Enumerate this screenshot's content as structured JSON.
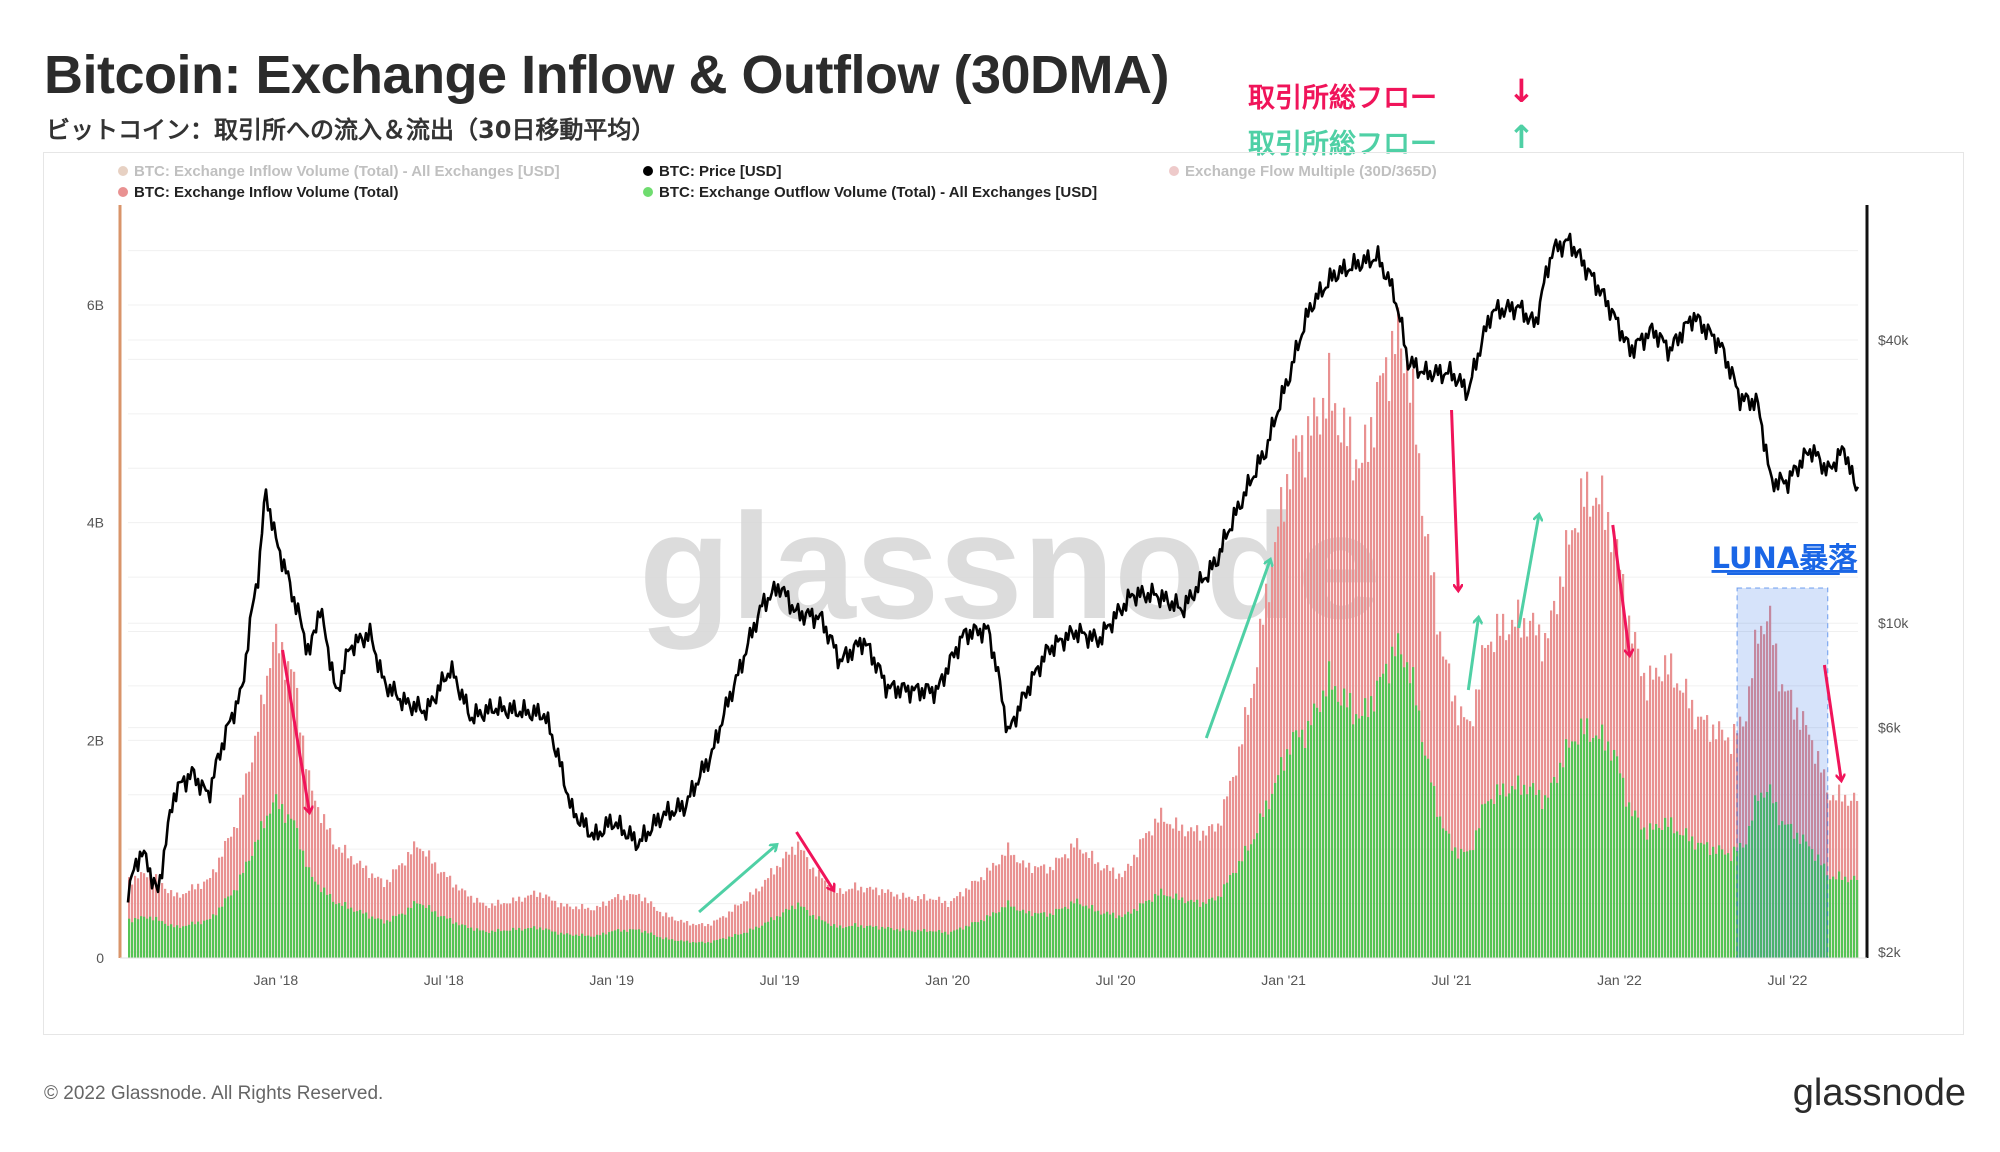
{
  "header": {
    "title": "Bitcoin: Exchange Inflow & Outflow (30DMA)",
    "subtitle": "ビットコイン：取引所への流入＆流出（30日移動平均）",
    "flow_down_label": "取引所総フロー",
    "flow_down_arrow": "↓",
    "flow_up_label": "取引所総フロー",
    "flow_up_arrow": "↑"
  },
  "footer": {
    "copyright": "© 2022 Glassnode. All Rights Reserved.",
    "brand": "glassnode"
  },
  "colors": {
    "inflow": "#e99191",
    "outflow": "#55c455",
    "price": "#000000",
    "down_arrow": "#f0145a",
    "up_arrow": "#4fd0a5",
    "highlight": "#1a66e6",
    "left_axis": "#d9946a"
  },
  "chart_data": {
    "type": "area",
    "title": "Bitcoin: Exchange Inflow & Outflow (30DMA)",
    "watermark": "glassnode",
    "legend": {
      "placement": "top-left",
      "items": [
        {
          "label": "BTC: Exchange Inflow Volume (Total) - All Exchanges [USD]",
          "color": "#c99a7a",
          "faded": true
        },
        {
          "label": "BTC: Price [USD]",
          "color": "#000000",
          "faded": false
        },
        {
          "label": "Exchange Flow Multiple (30D/365D)",
          "color": "#d98a8a",
          "faded": true
        },
        {
          "label": "BTC: Exchange Inflow Volume (Total)",
          "color": "#e99191",
          "faded": false
        },
        {
          "label": "BTC: Exchange Outflow Volume (Total) - All Exchanges [USD]",
          "color": "#6fdc6f",
          "faded": false
        }
      ]
    },
    "x_ticks": [
      "Jan '18",
      "Jul '18",
      "Jan '19",
      "Jul '19",
      "Jan '20",
      "Jul '20",
      "Jan '21",
      "Jul '21",
      "Jan '22",
      "Jul '22"
    ],
    "x_range_years": [
      2017.56,
      2022.71
    ],
    "x_tick_years": [
      2018.0,
      2018.5,
      2019.0,
      2019.5,
      2020.0,
      2020.5,
      2021.0,
      2021.5,
      2022.0,
      2022.5
    ],
    "left_axis": {
      "ticks": [
        "0",
        "2B",
        "4B",
        "6B"
      ],
      "tick_values": [
        0,
        2,
        4,
        6
      ],
      "unit": "B USD",
      "range": [
        0,
        7
      ]
    },
    "right_axis": {
      "scale": "log",
      "ticks": [
        "$2k",
        "$6k",
        "$10k",
        "$40k"
      ],
      "tick_values": [
        2000,
        6000,
        10000,
        40000
      ],
      "range": [
        2000,
        80000
      ]
    },
    "series": [
      {
        "name": "BTC: Exchange Inflow Volume (Total)",
        "unit": "B USD",
        "points": [
          [
            2017.56,
            0.72
          ],
          [
            2017.62,
            0.78
          ],
          [
            2017.7,
            0.56
          ],
          [
            2017.8,
            0.72
          ],
          [
            2017.88,
            1.25
          ],
          [
            2017.95,
            2.2
          ],
          [
            2017.99,
            2.95
          ],
          [
            2018.05,
            2.6
          ],
          [
            2018.1,
            1.55
          ],
          [
            2018.17,
            1.05
          ],
          [
            2018.25,
            0.85
          ],
          [
            2018.32,
            0.68
          ],
          [
            2018.38,
            0.9
          ],
          [
            2018.42,
            1.05
          ],
          [
            2018.48,
            0.82
          ],
          [
            2018.55,
            0.62
          ],
          [
            2018.62,
            0.48
          ],
          [
            2018.7,
            0.52
          ],
          [
            2018.78,
            0.6
          ],
          [
            2018.85,
            0.48
          ],
          [
            2018.95,
            0.45
          ],
          [
            2019.0,
            0.55
          ],
          [
            2019.08,
            0.58
          ],
          [
            2019.15,
            0.4
          ],
          [
            2019.22,
            0.32
          ],
          [
            2019.28,
            0.3
          ],
          [
            2019.33,
            0.38
          ],
          [
            2019.38,
            0.5
          ],
          [
            2019.43,
            0.62
          ],
          [
            2019.5,
            0.88
          ],
          [
            2019.55,
            1.05
          ],
          [
            2019.6,
            0.8
          ],
          [
            2019.67,
            0.6
          ],
          [
            2019.72,
            0.65
          ],
          [
            2019.8,
            0.62
          ],
          [
            2019.88,
            0.55
          ],
          [
            2019.95,
            0.55
          ],
          [
            2020.0,
            0.5
          ],
          [
            2020.06,
            0.65
          ],
          [
            2020.12,
            0.8
          ],
          [
            2020.18,
            1.0
          ],
          [
            2020.22,
            0.85
          ],
          [
            2020.3,
            0.82
          ],
          [
            2020.38,
            1.05
          ],
          [
            2020.45,
            0.85
          ],
          [
            2020.52,
            0.75
          ],
          [
            2020.58,
            1.1
          ],
          [
            2020.63,
            1.3
          ],
          [
            2020.68,
            1.2
          ],
          [
            2020.75,
            1.15
          ],
          [
            2020.8,
            1.2
          ],
          [
            2020.85,
            1.7
          ],
          [
            2020.9,
            2.4
          ],
          [
            2020.96,
            3.6
          ],
          [
            2021.02,
            4.6
          ],
          [
            2021.07,
            4.8
          ],
          [
            2021.13,
            5.2
          ],
          [
            2021.18,
            4.8
          ],
          [
            2021.23,
            4.5
          ],
          [
            2021.28,
            5.2
          ],
          [
            2021.33,
            5.7
          ],
          [
            2021.37,
            5.45
          ],
          [
            2021.41,
            4.2
          ],
          [
            2021.45,
            3.2
          ],
          [
            2021.5,
            2.4
          ],
          [
            2021.55,
            2.1
          ],
          [
            2021.6,
            2.9
          ],
          [
            2021.66,
            3.05
          ],
          [
            2021.72,
            3.1
          ],
          [
            2021.78,
            2.9
          ],
          [
            2021.83,
            3.6
          ],
          [
            2021.88,
            4.2
          ],
          [
            2021.93,
            4.25
          ],
          [
            2021.98,
            3.9
          ],
          [
            2022.03,
            3.0
          ],
          [
            2022.08,
            2.5
          ],
          [
            2022.13,
            2.7
          ],
          [
            2022.18,
            2.5
          ],
          [
            2022.23,
            2.2
          ],
          [
            2022.28,
            2.1
          ],
          [
            2022.33,
            2.0
          ],
          [
            2022.37,
            2.2
          ],
          [
            2022.41,
            3.0
          ],
          [
            2022.44,
            3.15
          ],
          [
            2022.48,
            2.5
          ],
          [
            2022.52,
            2.3
          ],
          [
            2022.57,
            2.0
          ],
          [
            2022.62,
            1.5
          ],
          [
            2022.71,
            1.45
          ]
        ]
      },
      {
        "name": "BTC: Exchange Outflow Volume (Total) - All Exchanges [USD]",
        "unit": "B USD",
        "points": [
          [
            2017.56,
            0.35
          ],
          [
            2017.62,
            0.38
          ],
          [
            2017.7,
            0.28
          ],
          [
            2017.8,
            0.35
          ],
          [
            2017.88,
            0.65
          ],
          [
            2017.95,
            1.15
          ],
          [
            2017.99,
            1.45
          ],
          [
            2018.05,
            1.25
          ],
          [
            2018.1,
            0.75
          ],
          [
            2018.17,
            0.52
          ],
          [
            2018.25,
            0.42
          ],
          [
            2018.32,
            0.33
          ],
          [
            2018.38,
            0.42
          ],
          [
            2018.42,
            0.52
          ],
          [
            2018.48,
            0.4
          ],
          [
            2018.55,
            0.3
          ],
          [
            2018.62,
            0.24
          ],
          [
            2018.7,
            0.26
          ],
          [
            2018.78,
            0.28
          ],
          [
            2018.85,
            0.22
          ],
          [
            2018.95,
            0.2
          ],
          [
            2019.0,
            0.25
          ],
          [
            2019.08,
            0.26
          ],
          [
            2019.15,
            0.18
          ],
          [
            2019.22,
            0.15
          ],
          [
            2019.28,
            0.14
          ],
          [
            2019.33,
            0.18
          ],
          [
            2019.38,
            0.22
          ],
          [
            2019.43,
            0.28
          ],
          [
            2019.5,
            0.4
          ],
          [
            2019.55,
            0.5
          ],
          [
            2019.6,
            0.38
          ],
          [
            2019.67,
            0.28
          ],
          [
            2019.72,
            0.3
          ],
          [
            2019.8,
            0.28
          ],
          [
            2019.88,
            0.25
          ],
          [
            2019.95,
            0.25
          ],
          [
            2020.0,
            0.23
          ],
          [
            2020.06,
            0.3
          ],
          [
            2020.12,
            0.38
          ],
          [
            2020.18,
            0.5
          ],
          [
            2020.22,
            0.42
          ],
          [
            2020.3,
            0.4
          ],
          [
            2020.38,
            0.52
          ],
          [
            2020.45,
            0.42
          ],
          [
            2020.52,
            0.38
          ],
          [
            2020.58,
            0.5
          ],
          [
            2020.63,
            0.6
          ],
          [
            2020.68,
            0.55
          ],
          [
            2020.75,
            0.5
          ],
          [
            2020.8,
            0.55
          ],
          [
            2020.85,
            0.8
          ],
          [
            2020.9,
            1.05
          ],
          [
            2020.96,
            1.5
          ],
          [
            2021.02,
            2.0
          ],
          [
            2021.07,
            2.1
          ],
          [
            2021.13,
            2.55
          ],
          [
            2021.18,
            2.35
          ],
          [
            2021.23,
            2.2
          ],
          [
            2021.28,
            2.5
          ],
          [
            2021.33,
            2.85
          ],
          [
            2021.37,
            2.7
          ],
          [
            2021.41,
            2.05
          ],
          [
            2021.45,
            1.4
          ],
          [
            2021.5,
            1.0
          ],
          [
            2021.55,
            0.95
          ],
          [
            2021.6,
            1.45
          ],
          [
            2021.66,
            1.55
          ],
          [
            2021.72,
            1.58
          ],
          [
            2021.78,
            1.45
          ],
          [
            2021.83,
            1.85
          ],
          [
            2021.88,
            2.1
          ],
          [
            2021.93,
            2.05
          ],
          [
            2021.98,
            1.9
          ],
          [
            2022.03,
            1.35
          ],
          [
            2022.08,
            1.15
          ],
          [
            2022.13,
            1.25
          ],
          [
            2022.18,
            1.15
          ],
          [
            2022.23,
            1.05
          ],
          [
            2022.28,
            1.0
          ],
          [
            2022.33,
            0.95
          ],
          [
            2022.37,
            1.05
          ],
          [
            2022.41,
            1.5
          ],
          [
            2022.44,
            1.55
          ],
          [
            2022.48,
            1.25
          ],
          [
            2022.52,
            1.15
          ],
          [
            2022.57,
            1.0
          ],
          [
            2022.62,
            0.75
          ],
          [
            2022.71,
            0.72
          ]
        ]
      },
      {
        "name": "BTC: Price [USD]",
        "unit": "USD",
        "points": [
          [
            2017.56,
            2700
          ],
          [
            2017.6,
            3300
          ],
          [
            2017.65,
            2650
          ],
          [
            2017.7,
            4400
          ],
          [
            2017.75,
            4800
          ],
          [
            2017.8,
            4300
          ],
          [
            2017.85,
            5800
          ],
          [
            2017.9,
            7200
          ],
          [
            2017.95,
            13000
          ],
          [
            2017.97,
            19000
          ],
          [
            2018.0,
            15000
          ],
          [
            2018.05,
            11500
          ],
          [
            2018.1,
            8500
          ],
          [
            2018.13,
            10800
          ],
          [
            2018.18,
            7000
          ],
          [
            2018.22,
            8900
          ],
          [
            2018.28,
            9500
          ],
          [
            2018.32,
            7500
          ],
          [
            2018.38,
            6800
          ],
          [
            2018.45,
            6500
          ],
          [
            2018.52,
            8000
          ],
          [
            2018.58,
            6300
          ],
          [
            2018.65,
            6600
          ],
          [
            2018.72,
            6500
          ],
          [
            2018.8,
            6400
          ],
          [
            2018.88,
            4000
          ],
          [
            2018.95,
            3500
          ],
          [
            2019.0,
            3800
          ],
          [
            2019.08,
            3400
          ],
          [
            2019.15,
            3900
          ],
          [
            2019.22,
            4100
          ],
          [
            2019.3,
            5300
          ],
          [
            2019.38,
            7900
          ],
          [
            2019.45,
            11000
          ],
          [
            2019.5,
            12000
          ],
          [
            2019.55,
            10500
          ],
          [
            2019.62,
            10300
          ],
          [
            2019.68,
            8300
          ],
          [
            2019.75,
            9200
          ],
          [
            2019.82,
            7300
          ],
          [
            2019.9,
            7200
          ],
          [
            2019.97,
            7200
          ],
          [
            2020.05,
            9500
          ],
          [
            2020.12,
            9700
          ],
          [
            2020.18,
            5800
          ],
          [
            2020.22,
            6800
          ],
          [
            2020.3,
            8800
          ],
          [
            2020.38,
            9600
          ],
          [
            2020.45,
            9200
          ],
          [
            2020.55,
            11500
          ],
          [
            2020.62,
            11500
          ],
          [
            2020.7,
            10700
          ],
          [
            2020.8,
            13500
          ],
          [
            2020.88,
            18500
          ],
          [
            2020.95,
            23500
          ],
          [
            2021.02,
            34000
          ],
          [
            2021.08,
            47000
          ],
          [
            2021.15,
            55000
          ],
          [
            2021.22,
            58000
          ],
          [
            2021.28,
            60000
          ],
          [
            2021.33,
            50000
          ],
          [
            2021.37,
            36000
          ],
          [
            2021.42,
            34000
          ],
          [
            2021.5,
            34000
          ],
          [
            2021.55,
            31000
          ],
          [
            2021.62,
            46000
          ],
          [
            2021.7,
            47000
          ],
          [
            2021.75,
            43000
          ],
          [
            2021.8,
            62000
          ],
          [
            2021.85,
            65000
          ],
          [
            2021.9,
            57000
          ],
          [
            2021.97,
            47000
          ],
          [
            2022.03,
            38000
          ],
          [
            2022.1,
            42000
          ],
          [
            2022.15,
            38000
          ],
          [
            2022.22,
            45000
          ],
          [
            2022.3,
            39000
          ],
          [
            2022.36,
            30000
          ],
          [
            2022.41,
            29500
          ],
          [
            2022.45,
            20000
          ],
          [
            2022.5,
            20000
          ],
          [
            2022.57,
            23500
          ],
          [
            2022.62,
            21000
          ],
          [
            2022.67,
            23500
          ],
          [
            2022.7,
            19500
          ]
        ]
      }
    ],
    "annotations": {
      "luna_label": "LUNA暴落",
      "luna_range_years": [
        2022.35,
        2022.62
      ],
      "arrows_down": [
        [
          2018.02,
          2018.1
        ],
        [
          2019.55,
          2019.66
        ],
        [
          2021.5,
          2021.52
        ],
        [
          2021.98,
          2022.03
        ],
        [
          2022.61,
          2022.66
        ]
      ],
      "arrows_up": [
        [
          2019.26,
          2019.49
        ],
        [
          2020.77,
          2020.96
        ],
        [
          2021.55,
          2021.58
        ],
        [
          2021.7,
          2021.76
        ]
      ]
    }
  }
}
